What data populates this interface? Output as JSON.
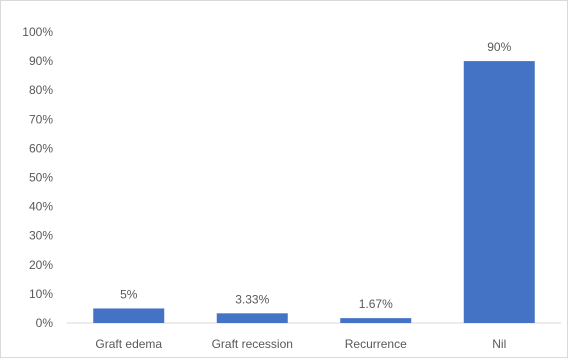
{
  "chart_data": {
    "type": "bar",
    "categories": [
      "Graft edema",
      "Graft recession",
      "Recurrence",
      "Nil"
    ],
    "values": [
      5,
      3.33,
      1.67,
      90
    ],
    "data_labels": [
      "5%",
      "3.33%",
      "1.67%",
      "90%"
    ],
    "title": "",
    "xlabel": "",
    "ylabel": "",
    "ylim": [
      0,
      100
    ],
    "y_ticks": [
      0,
      10,
      20,
      30,
      40,
      50,
      60,
      70,
      80,
      90,
      100
    ],
    "y_tick_labels": [
      "0%",
      "10%",
      "20%",
      "30%",
      "40%",
      "50%",
      "60%",
      "70%",
      "80%",
      "90%",
      "100%"
    ],
    "grid": false,
    "legend": "none",
    "colors": {
      "bar": "#4472c4",
      "axis": "#d9d9d9",
      "text": "#595959"
    }
  }
}
